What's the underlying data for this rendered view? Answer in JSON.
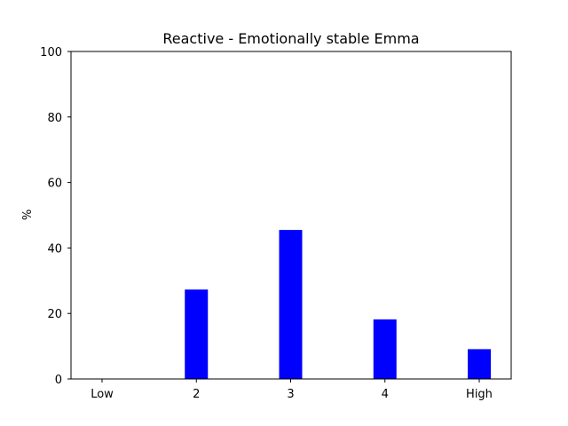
{
  "chart_data": {
    "type": "bar",
    "title": "Reactive - Emotionally stable Emma",
    "xlabel": "",
    "ylabel": "%",
    "categories": [
      "Low",
      "2",
      "3",
      "4",
      "High"
    ],
    "values": [
      0,
      27.3,
      45.5,
      18.2,
      9.1
    ],
    "ylim": [
      0,
      100
    ],
    "yticks": [
      0,
      20,
      40,
      60,
      80,
      100
    ],
    "bar_color": "#0000ff",
    "grid": false,
    "legend": "none"
  }
}
